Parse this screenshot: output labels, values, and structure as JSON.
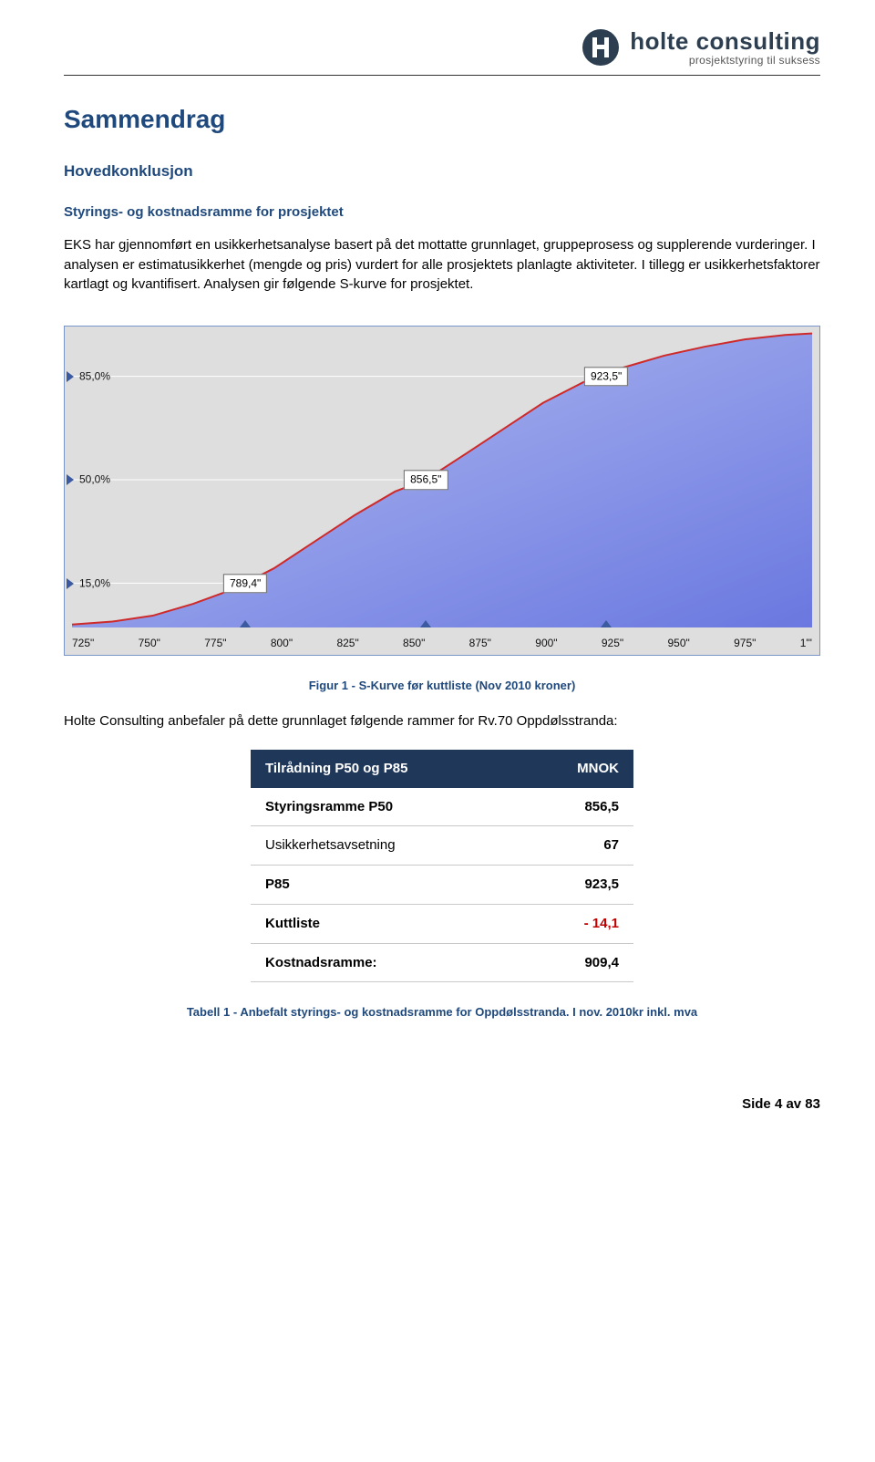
{
  "logo": {
    "name": "holte consulting",
    "tagline": "prosjektstyring til suksess",
    "circle_fill": "#2c3e50",
    "h_fill": "#ffffff"
  },
  "title": "Sammendrag",
  "subtitle": "Hovedkonklusjon",
  "section_heading": "Styrings- og kostnadsramme for prosjektet",
  "para1": "EKS har gjennomført en usikkerhetsanalyse basert på det mottatte grunnlaget, gruppeprosess og supplerende vurderinger. I analysen er estimatusikkerhet (mengde og pris) vurdert for alle prosjektets planlagte aktiviteter. I tillegg er usikkerhetsfaktorer kartlagt og kvantifisert. Analysen gir følgende S-kurve for prosjektet.",
  "chart": {
    "type": "s-curve",
    "background_color": "#dedede",
    "fill_gradient_from": "#b6bff1",
    "fill_gradient_to": "#6a78e0",
    "curve_color": "#cf2a2a",
    "curve_width": 2,
    "border_color": "#7a96c8",
    "grid_color": "#ffffff",
    "label_box_bg": "#ffffff",
    "label_box_border": "#666666",
    "marker_color": "#3b5aa0",
    "label_fontsize": 12,
    "y_percent_labels": [
      {
        "pct": 85.0,
        "text": "85,0%",
        "value_text": "923,5\"",
        "value_x": 923.5
      },
      {
        "pct": 50.0,
        "text": "50,0%",
        "value_text": "856,5\"",
        "value_x": 856.5
      },
      {
        "pct": 15.0,
        "text": "15,0%",
        "value_text": "789,4\"",
        "value_x": 789.4
      }
    ],
    "x_ticks": [
      "725\"",
      "750\"",
      "775\"",
      "800\"",
      "825\"",
      "850\"",
      "875\"",
      "900\"",
      "925\"",
      "950\"",
      "975\"",
      "1'\""
    ],
    "x_min": 725,
    "x_max": 1000,
    "x_bottom_markers": [
      789.4,
      856.5,
      923.5
    ],
    "curve_points": [
      {
        "x": 725,
        "y": 0.01
      },
      {
        "x": 740,
        "y": 0.02
      },
      {
        "x": 755,
        "y": 0.04
      },
      {
        "x": 770,
        "y": 0.08
      },
      {
        "x": 785,
        "y": 0.13
      },
      {
        "x": 800,
        "y": 0.2
      },
      {
        "x": 815,
        "y": 0.29
      },
      {
        "x": 830,
        "y": 0.38
      },
      {
        "x": 845,
        "y": 0.46
      },
      {
        "x": 856.5,
        "y": 0.5
      },
      {
        "x": 870,
        "y": 0.58
      },
      {
        "x": 885,
        "y": 0.67
      },
      {
        "x": 900,
        "y": 0.76
      },
      {
        "x": 915,
        "y": 0.83
      },
      {
        "x": 930,
        "y": 0.88
      },
      {
        "x": 945,
        "y": 0.92
      },
      {
        "x": 960,
        "y": 0.95
      },
      {
        "x": 975,
        "y": 0.975
      },
      {
        "x": 990,
        "y": 0.99
      },
      {
        "x": 1000,
        "y": 0.995
      }
    ]
  },
  "caption1": "Figur 1 - S-Kurve før kuttliste (Nov 2010 kroner)",
  "para2": "Holte Consulting anbefaler på dette grunnlaget følgende rammer for Rv.70 Oppdølsstranda:",
  "table": {
    "header_bg": "#1f3759",
    "header_fg": "#ffffff",
    "columns": [
      "Tilrådning P50 og P85",
      "MNOK"
    ],
    "rows": [
      {
        "label": "Styringsramme P50",
        "value": "856,5",
        "bold_label": true
      },
      {
        "label": "Usikkerhetsavsetning",
        "value": "67",
        "bold_label": false
      },
      {
        "label": "P85",
        "value": "923,5",
        "bold_label": true
      },
      {
        "label": "Kuttliste",
        "value": "- 14,1",
        "bold_label": true,
        "negative": true
      },
      {
        "label": "Kostnadsramme:",
        "value": "909,4",
        "bold_label": true
      }
    ]
  },
  "caption2": "Tabell 1 - Anbefalt styrings- og kostnadsramme for Oppdølsstranda. I nov. 2010kr inkl. mva",
  "footer": "Side 4 av 83"
}
